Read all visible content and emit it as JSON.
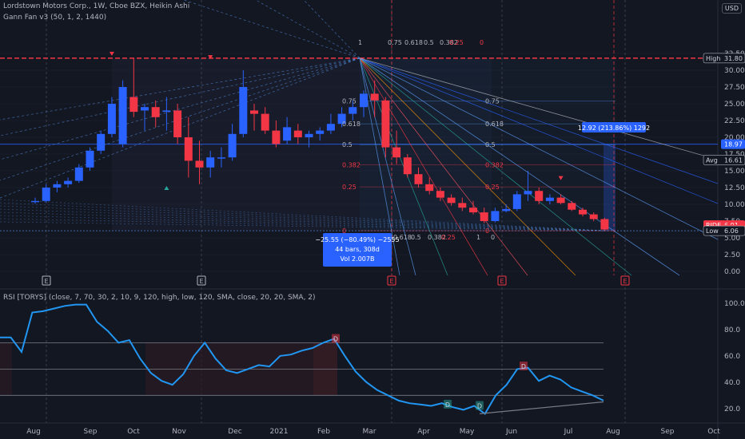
{
  "header": {
    "title": "Lordstown Motors Corp., 1W, Cboe BZX, Heikin Ashi",
    "indicator": "Gann Fan v3 (50, 1, 2, 1440)",
    "currency": "USD"
  },
  "price_axis": {
    "ticks": [
      "32.50",
      "30.00",
      "27.50",
      "25.00",
      "22.50",
      "20.00",
      "17.50",
      "15.00",
      "12.50",
      "10.00",
      "7.50",
      "5.00",
      "2.50",
      "0.00"
    ],
    "badges": [
      {
        "label": "High",
        "value": "31.80",
        "price": 31.8,
        "color": "#131722",
        "text": "#d1d4dc"
      },
      {
        "label": "",
        "value": "18.97",
        "price": 18.97,
        "color": "#2962ff",
        "text": "#ffffff"
      },
      {
        "label": "Avg",
        "value": "16.61",
        "price": 16.61,
        "color": "#131722",
        "text": "#d1d4dc"
      },
      {
        "label": "RIDE",
        "value": "6.91",
        "price": 6.91,
        "color": "#f23645",
        "text": "#ffffff"
      },
      {
        "label": "",
        "value": "6.24",
        "price": 6.24,
        "color": "#f23645",
        "text": "#ffffff"
      },
      {
        "label": "Low",
        "value": "6.06",
        "price": 6.06,
        "color": "#131722",
        "text": "#d1d4dc"
      }
    ]
  },
  "rsi": {
    "label": "RSI [TORYS] (close, 7, 70, 30, 2, 10, 9, 120, high, low, 120, SMA, close, 20, 20, SMA, 2)",
    "ticks": [
      "100.0",
      "80.0",
      "60.0",
      "40.0",
      "20.0"
    ],
    "levels": [
      70,
      50,
      30
    ],
    "values": [
      74,
      74,
      63,
      93,
      94,
      96,
      98,
      99,
      99,
      86,
      79,
      70,
      72,
      58,
      47,
      41,
      38,
      46,
      60,
      70,
      58,
      49,
      47,
      50,
      53,
      52,
      60,
      61,
      64,
      66,
      70,
      73,
      60,
      48,
      40,
      34,
      30,
      26,
      24,
      23,
      22,
      24,
      21,
      19,
      22,
      16,
      30,
      38,
      50,
      51,
      41,
      45,
      42,
      36,
      33,
      30,
      26
    ],
    "divergence_labels": [
      "D",
      "D",
      "D",
      "D"
    ]
  },
  "time_axis": {
    "labels": [
      "Aug",
      "Sep",
      "Oct",
      "Nov",
      "Dec",
      "2021",
      "Feb",
      "Mar",
      "Apr",
      "May",
      "Jun",
      "Jul",
      "Aug",
      "Sep",
      "Oct"
    ]
  },
  "event_markers": [
    "E",
    "E",
    "E",
    "E",
    "E"
  ],
  "annotations": {
    "measure_box": [
      "−25.55 (−80.49%) −2555",
      "44 bars, 308d",
      "Vol 2.007B"
    ],
    "measure_up": "12.92 (213.86%) 1292",
    "fan_top_labels": [
      "1",
      "0.75",
      "0.618",
      "0.5",
      "0.382",
      "0.25",
      "0"
    ],
    "fan_bottom_labels": [
      "0.618",
      "0.5",
      "0.382",
      "0.25",
      "1",
      "0"
    ],
    "fib_levels": [
      "0.75",
      "0.618",
      "0.5",
      "0.382",
      "0.25",
      "0"
    ]
  },
  "chart_data": {
    "type": "candlestick",
    "title": "Lordstown Motors Corp., 1W, Cboe BZX, Heikin Ashi",
    "series": [
      {
        "name": "RIDE",
        "candles": [
          [
            10.5,
            11.0,
            10.1,
            10.5
          ],
          [
            10.5,
            13.0,
            10.3,
            12.5
          ],
          [
            12.5,
            13.5,
            11.8,
            13.0
          ],
          [
            13.0,
            14.0,
            12.5,
            13.5
          ],
          [
            13.5,
            16.0,
            13.2,
            15.5
          ],
          [
            15.5,
            18.5,
            15.0,
            18.0
          ],
          [
            18.0,
            21.0,
            17.5,
            20.5
          ],
          [
            20.5,
            26.0,
            20.0,
            25.0
          ],
          [
            19.0,
            28.5,
            18.5,
            27.5
          ],
          [
            26.0,
            31.8,
            23.0,
            23.8
          ],
          [
            24.0,
            25.0,
            21.0,
            24.5
          ],
          [
            24.5,
            25.5,
            21.5,
            23.0
          ],
          [
            23.8,
            26.0,
            21.0,
            24.0
          ],
          [
            24.0,
            25.0,
            19.0,
            20.0
          ],
          [
            20.0,
            23.0,
            14.0,
            16.5
          ],
          [
            16.5,
            19.5,
            13.0,
            15.5
          ],
          [
            15.5,
            18.0,
            14.0,
            17.0
          ],
          [
            17.0,
            18.5,
            15.5,
            17.0
          ],
          [
            17.0,
            22.0,
            16.5,
            20.5
          ],
          [
            20.5,
            30.0,
            20.0,
            27.5
          ],
          [
            24.0,
            25.0,
            21.0,
            23.5
          ],
          [
            23.5,
            24.5,
            20.5,
            21.0
          ],
          [
            21.0,
            22.5,
            18.5,
            19.0
          ],
          [
            19.5,
            23.0,
            19.0,
            21.5
          ],
          [
            21.0,
            22.0,
            19.0,
            20.0
          ],
          [
            20.0,
            21.0,
            18.5,
            20.5
          ],
          [
            20.5,
            21.5,
            19.5,
            21.0
          ],
          [
            21.0,
            23.5,
            20.5,
            22.0
          ],
          [
            22.0,
            24.5,
            21.5,
            23.5
          ],
          [
            23.5,
            25.5,
            22.5,
            24.5
          ],
          [
            24.5,
            27.0,
            23.0,
            26.5
          ],
          [
            26.5,
            28.5,
            23.0,
            25.5
          ],
          [
            25.5,
            26.0,
            17.0,
            18.5
          ],
          [
            18.5,
            21.0,
            16.0,
            17.0
          ],
          [
            17.0,
            17.5,
            14.0,
            14.5
          ],
          [
            14.5,
            15.5,
            12.5,
            13.0
          ],
          [
            13.0,
            14.0,
            11.5,
            12.0
          ],
          [
            12.0,
            12.5,
            10.5,
            11.0
          ],
          [
            11.0,
            11.5,
            9.8,
            10.2
          ],
          [
            10.2,
            11.0,
            9.0,
            9.5
          ],
          [
            9.5,
            10.5,
            8.5,
            8.8
          ],
          [
            8.8,
            9.5,
            7.2,
            7.5
          ],
          [
            7.5,
            9.5,
            7.3,
            9.0
          ],
          [
            9.0,
            10.0,
            8.8,
            9.3
          ],
          [
            9.3,
            12.0,
            9.0,
            11.5
          ],
          [
            11.5,
            15.0,
            10.5,
            12.0
          ],
          [
            12.0,
            12.5,
            10.0,
            10.5
          ],
          [
            10.5,
            11.5,
            10.0,
            11.0
          ],
          [
            11.0,
            11.5,
            10.0,
            10.2
          ],
          [
            10.2,
            10.5,
            9.0,
            9.2
          ],
          [
            9.2,
            9.5,
            8.2,
            8.5
          ],
          [
            8.5,
            8.8,
            7.5,
            7.8
          ],
          [
            7.8,
            8.0,
            6.06,
            6.24
          ]
        ]
      }
    ],
    "y_range": [
      0,
      32.5
    ],
    "x_labels": [
      "Aug",
      "Sep",
      "Oct",
      "Nov",
      "Dec",
      "2021",
      "Feb",
      "Mar",
      "Apr",
      "May",
      "Jun",
      "Jul",
      "Aug",
      "Sep",
      "Oct"
    ],
    "colors": {
      "up": "#2962ff",
      "down": "#f23645",
      "grid": "#1f2230"
    }
  }
}
